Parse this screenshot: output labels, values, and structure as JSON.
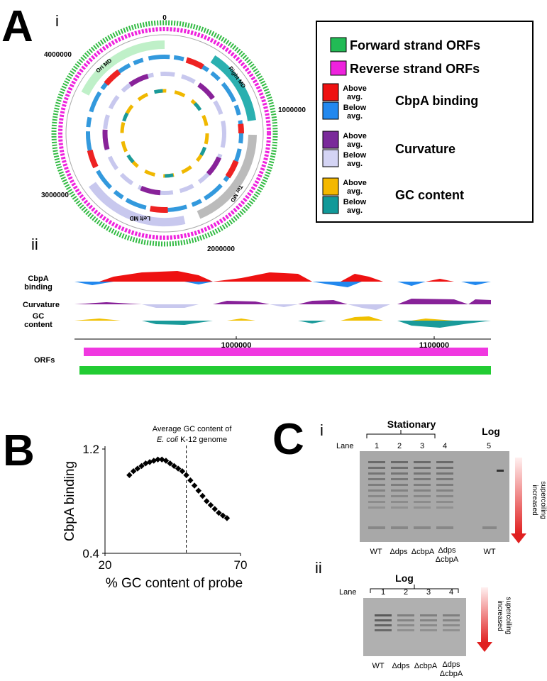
{
  "panel_a": {
    "letter": "A",
    "sub_i": "i",
    "sub_ii": "ii",
    "circle_ticks": [
      "0",
      "1000000",
      "2000000",
      "3000000",
      "4000000"
    ],
    "macrodomains": [
      "Ori MD",
      "Right MD",
      "Ter MD",
      "Left MD"
    ],
    "legend": {
      "forward": "Forward strand ORFs",
      "reverse": "Reverse strand ORFs",
      "above": "Above avg.",
      "below": "Below avg.",
      "cbpa": "CbpA binding",
      "curvature": "Curvature",
      "gc": "GC content"
    },
    "tracks": {
      "cbpa": "CbpA binding",
      "curvature": "Curvature",
      "gc": "GC content",
      "orfs": "ORFs",
      "ticks": [
        "1000000",
        "1100000"
      ]
    }
  },
  "chart_data": {
    "type": "scatter",
    "letter": "B",
    "xlabel": "% GC content of probe",
    "ylabel": "CbpA binding",
    "annotation": {
      "line1": "Average GC content of",
      "species": "E. coli",
      "line2": "K-12 genome"
    },
    "reference_x": 50,
    "x": [
      29,
      30.5,
      32,
      33.5,
      35,
      36.5,
      38,
      39.5,
      41,
      42.5,
      44,
      45.5,
      47,
      48.5,
      50,
      51.5,
      53,
      54.5,
      56,
      57.5,
      59,
      60.5,
      62,
      63.5,
      65
    ],
    "values": [
      1.0,
      1.03,
      1.05,
      1.07,
      1.09,
      1.1,
      1.11,
      1.12,
      1.12,
      1.11,
      1.09,
      1.07,
      1.05,
      1.03,
      1.0,
      0.96,
      0.92,
      0.88,
      0.84,
      0.8,
      0.77,
      0.74,
      0.71,
      0.69,
      0.67
    ],
    "color": "#000000",
    "xlim": [
      20,
      70
    ],
    "xticks": [
      20,
      70
    ],
    "ylim": [
      0.4,
      1.2
    ],
    "yticks": [
      0.4,
      1.2
    ]
  },
  "panel_c": {
    "letter": "C",
    "sub_i": "i",
    "sub_ii": "ii",
    "lane": "Lane",
    "stationary": "Stationary",
    "log": "Log",
    "lanes_i": [
      "1",
      "2",
      "3",
      "4",
      "5"
    ],
    "lanes_ii": [
      "1",
      "2",
      "3",
      "4"
    ],
    "strains_i": [
      "WT",
      "Δdps",
      "ΔcbpA",
      "Δdps",
      "ΔcbpA",
      "WT"
    ],
    "strains_ii": [
      "WT",
      "Δdps",
      "ΔcbpA",
      "Δdps",
      "ΔcbpA"
    ],
    "arrow_label": [
      "increased",
      "supercoiling"
    ]
  }
}
